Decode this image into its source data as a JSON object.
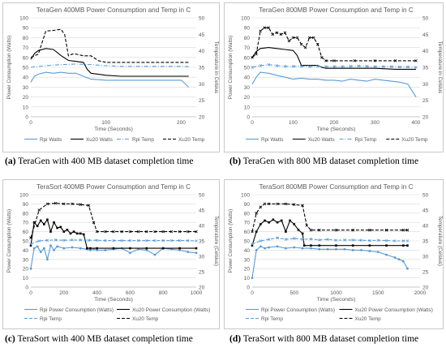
{
  "chart_data": [
    {
      "type": "line",
      "title": "TeraGen 400MB Power Consumption  and Temp in C",
      "xlabel": "Time (Seconds)",
      "ylabel": "Power Consumption (Watts)",
      "y2label": "Temperature in Celsius",
      "xlim": [
        0,
        220
      ],
      "xticks": [
        0,
        100,
        200
      ],
      "ylim": [
        0,
        100
      ],
      "yticks": [
        0,
        10,
        20,
        30,
        40,
        50,
        60,
        70,
        80,
        90,
        100
      ],
      "y2lim": [
        20,
        50
      ],
      "y2ticks": [
        20,
        25,
        30,
        35,
        40,
        45,
        50
      ],
      "grid": true,
      "legend_position": "bottom",
      "caption_label": "(a)",
      "caption_text": "TeraGen with 400 MB dataset completion time",
      "series": [
        {
          "name": "Rpi Watts",
          "axis": "left",
          "color": "#5b9bd5",
          "style": "solid",
          "marker": "none",
          "x": [
            0,
            5,
            10,
            20,
            30,
            40,
            50,
            60,
            70,
            80,
            100,
            120,
            140,
            160,
            180,
            200,
            210
          ],
          "y": [
            35,
            41,
            43,
            45,
            44,
            45,
            44,
            44,
            41,
            38,
            37,
            37,
            37,
            37,
            37,
            37,
            30
          ]
        },
        {
          "name": "Xu20 Watts",
          "axis": "left",
          "color": "#000000",
          "style": "solid",
          "marker": "none",
          "x": [
            0,
            5,
            10,
            20,
            30,
            40,
            50,
            60,
            70,
            75,
            80,
            100,
            120,
            140,
            160,
            180,
            200,
            210
          ],
          "y": [
            58,
            64,
            67,
            69,
            68,
            62,
            57,
            56,
            55,
            48,
            44,
            42,
            41,
            41,
            41,
            41,
            41,
            41
          ]
        },
        {
          "name": "Rpi Temp",
          "axis": "right",
          "color": "#5b9bd5",
          "style": "dashdot",
          "marker": "none",
          "x": [
            0,
            20,
            40,
            60,
            80,
            100,
            120,
            140,
            160,
            180,
            200,
            210
          ],
          "y": [
            35,
            35.5,
            35.8,
            36,
            35.8,
            35.5,
            35.3,
            35.3,
            35.3,
            35.3,
            35.3,
            35.2
          ]
        },
        {
          "name": "Xu20 Temp",
          "axis": "right",
          "color": "#000000",
          "style": "dashed",
          "marker": "none",
          "x": [
            0,
            10,
            20,
            30,
            40,
            45,
            50,
            55,
            60,
            70,
            80,
            90,
            100,
            120,
            140,
            160,
            180,
            200,
            210
          ],
          "y": [
            38,
            39,
            46,
            46.2,
            46.5,
            45,
            38.5,
            39,
            39,
            38.5,
            38.5,
            37,
            36.5,
            36.5,
            36.5,
            36.5,
            36.5,
            36.5,
            36.5
          ]
        }
      ]
    },
    {
      "type": "line",
      "title": "TeraGen 800MB Power Consumption  and Temp in C",
      "xlabel": "Time (Seconds)",
      "ylabel": "Power Consumption (Watts)",
      "y2label": "Temperature in Celsius",
      "xlim": [
        0,
        410
      ],
      "xticks": [
        0,
        100,
        200,
        300,
        400
      ],
      "ylim": [
        0,
        100
      ],
      "yticks": [
        0,
        10,
        20,
        30,
        40,
        50,
        60,
        70,
        80,
        90,
        100
      ],
      "y2lim": [
        20,
        50
      ],
      "y2ticks": [
        20,
        25,
        30,
        35,
        40,
        45,
        50
      ],
      "grid": true,
      "legend_position": "bottom",
      "caption_label": "(b)",
      "caption_text": "TeraGen with 800 MB dataset completion time",
      "series": [
        {
          "name": "Rpi Watts",
          "axis": "left",
          "color": "#5b9bd5",
          "style": "solid",
          "marker": "none",
          "x": [
            0,
            10,
            20,
            40,
            60,
            80,
            100,
            120,
            140,
            160,
            180,
            200,
            220,
            240,
            260,
            280,
            300,
            320,
            340,
            360,
            380,
            400
          ],
          "y": [
            33,
            40,
            45,
            44,
            42,
            40,
            38,
            39,
            38,
            38,
            37,
            37,
            36,
            38,
            37,
            36,
            38,
            37,
            36,
            35,
            33,
            20
          ]
        },
        {
          "name": "Xu20 Watts",
          "axis": "left",
          "color": "#000000",
          "style": "solid",
          "marker": "none",
          "x": [
            0,
            10,
            20,
            40,
            60,
            80,
            100,
            110,
            120,
            140,
            160,
            170,
            180,
            200,
            250,
            300,
            350,
            400
          ],
          "y": [
            60,
            66,
            69,
            70,
            69,
            68,
            67,
            62,
            52,
            52,
            52,
            50,
            49,
            49,
            49,
            49,
            48,
            48
          ]
        },
        {
          "name": "Rpi Temp",
          "axis": "right",
          "color": "#5b9bd5",
          "style": "dashdot",
          "marker": "x",
          "x": [
            0,
            20,
            40,
            60,
            80,
            100,
            120,
            140,
            160,
            180,
            200,
            220,
            240,
            260,
            280,
            300,
            320,
            340,
            360,
            380,
            400
          ],
          "y": [
            35,
            35.5,
            35.8,
            35.5,
            35.3,
            35.3,
            35.3,
            35.2,
            35.3,
            35.2,
            35.2,
            35.2,
            35.3,
            35.4,
            35.3,
            35.2,
            35.2,
            35.2,
            35.1,
            35.1,
            35
          ]
        },
        {
          "name": "Xu20 Temp",
          "axis": "right",
          "color": "#000000",
          "style": "dashed",
          "marker": "x",
          "x": [
            0,
            10,
            20,
            30,
            40,
            50,
            60,
            70,
            80,
            90,
            100,
            110,
            120,
            130,
            140,
            150,
            160,
            170,
            180,
            200,
            250,
            300,
            350,
            400
          ],
          "y": [
            38,
            39,
            46,
            47,
            47,
            45,
            45.5,
            45,
            45.5,
            43,
            44,
            44,
            42,
            41,
            44,
            44,
            42,
            38,
            37,
            37,
            37,
            37,
            37,
            37
          ]
        }
      ]
    },
    {
      "type": "line",
      "title": "TeraSort 400MB Power Consumption  and Temp in C",
      "xlabel": "Time (Seconds)",
      "ylabel": "Power Consumption (Watts)",
      "y2label": "Temperature (Celsius)",
      "xlim": [
        0,
        1000
      ],
      "xticks": [
        0,
        200,
        400,
        600,
        800,
        1000
      ],
      "ylim": [
        0,
        100
      ],
      "yticks": [
        0,
        10,
        20,
        30,
        40,
        50,
        60,
        70,
        80,
        90,
        100
      ],
      "y2lim": [
        20,
        50
      ],
      "y2ticks": [
        20,
        25,
        30,
        35,
        40,
        45,
        50
      ],
      "grid": true,
      "legend_position": "bottom",
      "caption_label": "(c)",
      "caption_text": "TeraSort with 400 MB dataset completion time",
      "series": [
        {
          "name": "Rpi Power Consumption (Watts)",
          "axis": "left",
          "color": "#5b9bd5",
          "style": "solid",
          "marker": "dot",
          "x": [
            0,
            20,
            40,
            60,
            80,
            100,
            120,
            140,
            160,
            200,
            250,
            300,
            340,
            360,
            380,
            400,
            450,
            500,
            550,
            600,
            650,
            700,
            750,
            800,
            850,
            900,
            950,
            1000
          ],
          "y": [
            20,
            42,
            44,
            38,
            42,
            30,
            45,
            40,
            44,
            42,
            43,
            42,
            41,
            40,
            41,
            40,
            40,
            41,
            42,
            37,
            41,
            40,
            35,
            42,
            41,
            40,
            38,
            37
          ]
        },
        {
          "name": "Xu20 Power Consumption (Watts)",
          "axis": "left",
          "color": "#000000",
          "style": "solid",
          "marker": "square",
          "x": [
            0,
            20,
            40,
            60,
            80,
            100,
            120,
            140,
            160,
            180,
            200,
            220,
            240,
            260,
            280,
            300,
            320,
            340,
            360,
            400,
            500,
            600,
            700,
            800,
            900,
            1000
          ],
          "y": [
            45,
            70,
            66,
            72,
            68,
            73,
            60,
            70,
            64,
            65,
            60,
            62,
            58,
            60,
            58,
            58,
            57,
            42,
            42,
            42,
            42,
            42,
            42,
            42,
            42,
            42
          ]
        },
        {
          "name": "Rpi Temp",
          "axis": "right",
          "color": "#5b9bd5",
          "style": "dashed",
          "marker": "x",
          "x": [
            0,
            50,
            100,
            150,
            200,
            250,
            300,
            350,
            400,
            450,
            500,
            550,
            600,
            650,
            700,
            750,
            800,
            850,
            900,
            950,
            1000
          ],
          "y": [
            34,
            35,
            35.2,
            35.3,
            35.2,
            35.3,
            35.3,
            35.2,
            35.2,
            35.1,
            35.1,
            35.1,
            35.1,
            35.1,
            35.1,
            35.1,
            35.1,
            35.1,
            35.1,
            35.1,
            35
          ]
        },
        {
          "name": "Xu20 Temp",
          "axis": "right",
          "color": "#000000",
          "style": "dashed",
          "marker": "x",
          "x": [
            0,
            50,
            100,
            150,
            200,
            250,
            300,
            350,
            380,
            400,
            450,
            500,
            550,
            600,
            650,
            700,
            750,
            800,
            850,
            900,
            950,
            1000
          ],
          "y": [
            36,
            45,
            47,
            47.2,
            47,
            47,
            46.8,
            46.5,
            41,
            38,
            38,
            38,
            38,
            38,
            38,
            38,
            38,
            38,
            38,
            38,
            38,
            38
          ]
        }
      ]
    },
    {
      "type": "line",
      "title": "TeraSort 800MB Power Consumption  and Temp in C",
      "xlabel": "Time (Seconds)",
      "ylabel": "Power Consumption (Watts)",
      "y2label": "Temperature (Celsius)",
      "xlim": [
        0,
        2000
      ],
      "xticks": [
        0,
        500,
        1000,
        1500,
        2000
      ],
      "ylim": [
        0,
        100
      ],
      "yticks": [
        0,
        10,
        20,
        30,
        40,
        50,
        60,
        70,
        80,
        90,
        100
      ],
      "y2lim": [
        20,
        50
      ],
      "y2ticks": [
        20,
        25,
        30,
        35,
        40,
        45,
        50
      ],
      "grid": true,
      "legend_position": "bottom",
      "caption_label": "(d)",
      "caption_text": "TeraSort with 800 MB dataset completion time",
      "series": [
        {
          "name": "Rpi Power Consumption (Watts)",
          "axis": "left",
          "color": "#5b9bd5",
          "style": "solid",
          "marker": "dot",
          "x": [
            0,
            50,
            100,
            150,
            200,
            300,
            400,
            500,
            600,
            700,
            800,
            900,
            1000,
            1100,
            1200,
            1300,
            1400,
            1500,
            1600,
            1700,
            1750,
            1800,
            1850
          ],
          "y": [
            10,
            40,
            44,
            42,
            43,
            44,
            42,
            43,
            42,
            42,
            41,
            41,
            41,
            41,
            40,
            40,
            39,
            38,
            35,
            32,
            30,
            28,
            20
          ]
        },
        {
          "name": "Xu20 Power Consumption (Watts)",
          "axis": "left",
          "color": "#000000",
          "style": "solid",
          "marker": "square",
          "x": [
            0,
            50,
            100,
            150,
            200,
            250,
            300,
            350,
            400,
            450,
            500,
            550,
            600,
            620,
            700,
            800,
            1000,
            1200,
            1400,
            1600,
            1800,
            1850
          ],
          "y": [
            45,
            60,
            68,
            72,
            70,
            73,
            70,
            72,
            60,
            72,
            68,
            62,
            58,
            45,
            45,
            45,
            45,
            45,
            45,
            45,
            45,
            45
          ]
        },
        {
          "name": "Rpi Temp",
          "axis": "right",
          "color": "#5b9bd5",
          "style": "dashed",
          "marker": "x",
          "x": [
            0,
            100,
            200,
            300,
            400,
            500,
            600,
            700,
            800,
            900,
            1000,
            1100,
            1200,
            1300,
            1400,
            1500,
            1600,
            1700,
            1800,
            1850
          ],
          "y": [
            34,
            35,
            35.5,
            36,
            35.5,
            35.8,
            35.5,
            35.6,
            35.3,
            35.5,
            35.2,
            35.3,
            35.3,
            35.2,
            35.1,
            35.2,
            35.1,
            35,
            35,
            35
          ]
        },
        {
          "name": "Xu20 Temp",
          "axis": "right",
          "color": "#000000",
          "style": "dashed",
          "marker": "x",
          "x": [
            0,
            50,
            100,
            150,
            200,
            300,
            400,
            500,
            600,
            650,
            700,
            800,
            1000,
            1200,
            1400,
            1600,
            1800,
            1850
          ],
          "y": [
            38,
            44,
            46,
            47,
            47,
            47,
            47,
            46.8,
            46.5,
            40,
            38.5,
            38.5,
            38.5,
            38.5,
            38.5,
            38.5,
            38.5,
            38.5
          ]
        }
      ]
    }
  ]
}
